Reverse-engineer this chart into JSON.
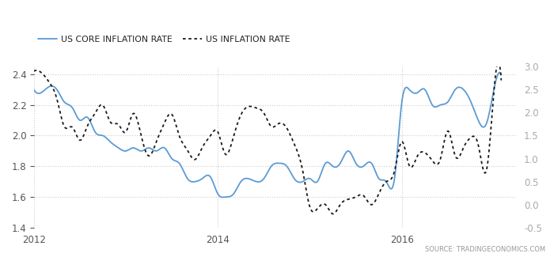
{
  "legend_labels": [
    "US CORE INFLATION RATE",
    "US INFLATION RATE"
  ],
  "source_text": "SOURCE: TRADINGECONOMICS.COM",
  "core_inflation_x": [
    2012.0,
    2012.08,
    2012.17,
    2012.25,
    2012.33,
    2012.42,
    2012.5,
    2012.58,
    2012.67,
    2012.75,
    2012.83,
    2012.92,
    2013.0,
    2013.08,
    2013.17,
    2013.25,
    2013.33,
    2013.42,
    2013.5,
    2013.58,
    2013.67,
    2013.75,
    2013.83,
    2013.92,
    2014.0,
    2014.08,
    2014.17,
    2014.25,
    2014.33,
    2014.42,
    2014.5,
    2014.58,
    2014.67,
    2014.75,
    2014.83,
    2014.92,
    2015.0,
    2015.08,
    2015.17,
    2015.25,
    2015.33,
    2015.42,
    2015.5,
    2015.58,
    2015.67,
    2015.75,
    2015.83,
    2015.92,
    2016.0,
    2016.08,
    2016.17,
    2016.25,
    2016.33,
    2016.42,
    2016.5,
    2016.58,
    2016.67,
    2016.75,
    2016.83,
    2016.92,
    2017.0,
    2017.08
  ],
  "core_inflation_y": [
    2.3,
    2.28,
    2.32,
    2.3,
    2.22,
    2.18,
    2.1,
    2.12,
    2.02,
    2.0,
    1.96,
    1.92,
    1.9,
    1.92,
    1.9,
    1.92,
    1.9,
    1.92,
    1.85,
    1.82,
    1.72,
    1.7,
    1.72,
    1.73,
    1.62,
    1.6,
    1.62,
    1.7,
    1.72,
    1.7,
    1.72,
    1.8,
    1.82,
    1.8,
    1.72,
    1.7,
    1.72,
    1.7,
    1.82,
    1.8,
    1.82,
    1.9,
    1.82,
    1.8,
    1.82,
    1.72,
    1.7,
    1.72,
    2.22,
    2.3,
    2.28,
    2.3,
    2.2,
    2.2,
    2.22,
    2.3,
    2.3,
    2.22,
    2.1,
    2.08,
    2.3,
    2.4
  ],
  "inflation_x": [
    2012.0,
    2012.08,
    2012.17,
    2012.25,
    2012.33,
    2012.42,
    2012.5,
    2012.58,
    2012.67,
    2012.75,
    2012.83,
    2012.92,
    2013.0,
    2013.08,
    2013.17,
    2013.25,
    2013.33,
    2013.42,
    2013.5,
    2013.58,
    2013.67,
    2013.75,
    2013.83,
    2013.92,
    2014.0,
    2014.08,
    2014.17,
    2014.25,
    2014.33,
    2014.42,
    2014.5,
    2014.58,
    2014.67,
    2014.75,
    2014.83,
    2014.92,
    2015.0,
    2015.08,
    2015.17,
    2015.25,
    2015.33,
    2015.42,
    2015.5,
    2015.58,
    2015.67,
    2015.75,
    2015.83,
    2015.92,
    2016.0,
    2016.08,
    2016.17,
    2016.25,
    2016.33,
    2016.42,
    2016.5,
    2016.58,
    2016.67,
    2016.75,
    2016.83,
    2016.92,
    2017.0,
    2017.08
  ],
  "inflation_y": [
    2.9,
    2.87,
    2.65,
    2.3,
    1.7,
    1.68,
    1.4,
    1.7,
    2.0,
    2.16,
    1.8,
    1.74,
    1.58,
    1.98,
    1.47,
    1.06,
    1.36,
    1.78,
    1.96,
    1.5,
    1.18,
    0.98,
    1.24,
    1.5,
    1.58,
    1.1,
    1.48,
    1.95,
    2.13,
    2.1,
    1.99,
    1.7,
    1.77,
    1.66,
    1.32,
    0.76,
    -0.05,
    -0.09,
    0.0,
    -0.2,
    0.0,
    0.12,
    0.17,
    0.2,
    0.0,
    0.24,
    0.5,
    0.73,
    1.37,
    0.85,
    1.06,
    1.13,
    0.96,
    1.0,
    1.6,
    1.06,
    1.24,
    1.46,
    1.3,
    0.75,
    2.45,
    2.7
  ],
  "x_start_year": 2012.0,
  "x_end_year": 2017.25,
  "left_ylim": [
    1.4,
    2.45
  ],
  "right_ylim": [
    -0.5,
    3.0
  ],
  "left_yticks": [
    1.4,
    1.6,
    1.8,
    2.0,
    2.2,
    2.4
  ],
  "right_yticks": [
    -0.5,
    0.0,
    0.5,
    1.0,
    1.5,
    2.0,
    2.5,
    3.0
  ],
  "x_tick_years": [
    2012,
    2014,
    2016
  ],
  "core_color": "#5b9bd5",
  "inflation_color": "#1a1a1a",
  "grid_color": "#cccccc",
  "bg_color": "#ffffff",
  "source_color": "#999999",
  "legend_color": "#222222",
  "left_tick_color": "#555555",
  "right_tick_color": "#aaaaaa"
}
